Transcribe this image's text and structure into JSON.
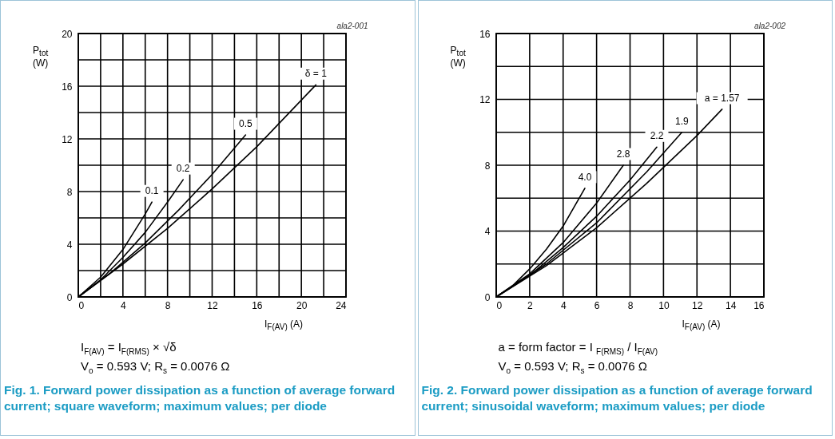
{
  "chart_data": [
    {
      "type": "line",
      "title": "Fig. 1. Forward power dissipation as a function of average forward current; square waveform; maximum values; per diode",
      "xlabel": "I$_{F(AV)}$ (A)",
      "ylabel": "P$_{tot}$ (W)",
      "annotations": [
        "ala2-001",
        "I$_{F(AV)}$ = I$_{F(RMS)}$ × √δ",
        "V$_{o}$ = 0.593 V; R$_{s}$ = 0.0076 Ω"
      ],
      "xlim": [
        0,
        24
      ],
      "ylim": [
        0,
        20
      ],
      "xticks": [
        0,
        {
          "value": 2,
          "label": null
        },
        4,
        {
          "value": 6,
          "label": null
        },
        8,
        {
          "value": 10,
          "label": null
        },
        12,
        {
          "value": 14,
          "label": null
        },
        16,
        {
          "value": 18,
          "label": null
        },
        20,
        {
          "value": 22,
          "label": null
        },
        24
      ],
      "yticks": [
        0,
        {
          "value": 2,
          "label": null
        },
        4,
        {
          "value": 6,
          "label": null
        },
        8,
        {
          "value": 10,
          "label": null
        },
        12,
        {
          "value": 14,
          "label": null
        },
        16,
        {
          "value": 18,
          "label": null
        },
        20
      ],
      "grid": true,
      "legend": false,
      "marker": "none",
      "line_style": "solid",
      "series": [
        {
          "name": "0.1",
          "color": "#000000",
          "x": [
            0,
            2,
            4,
            6,
            6.6
          ],
          "values": [
            0,
            1.5,
            3.6,
            6.3,
            7.2
          ]
        },
        {
          "name": "0.2",
          "color": "#000000",
          "x": [
            0,
            2,
            4,
            6,
            8,
            9.4
          ],
          "values": [
            0,
            1.3,
            3.0,
            4.9,
            7.2,
            8.9
          ]
        },
        {
          "name": "0.5",
          "color": "#000000",
          "x": [
            0,
            3,
            6,
            9,
            12,
            15
          ],
          "values": [
            0,
            1.9,
            4.1,
            6.6,
            9.3,
            12.3
          ]
        },
        {
          "name": "δ = 1",
          "color": "#000000",
          "x": [
            0,
            4,
            8,
            12,
            16,
            21.3
          ],
          "values": [
            0,
            2.5,
            5.2,
            8.2,
            11.4,
            16.1
          ]
        }
      ]
    },
    {
      "type": "line",
      "title": "Fig. 2. Forward power dissipation as a function of average forward current; sinusoidal waveform; maximum values; per diode",
      "xlabel": "I$_{F(AV)}$ (A)",
      "ylabel": "P$_{tot}$ (W)",
      "annotations": [
        "ala2-002",
        "a = form factor = I $_{F(RMS)}$ / I$_{F(AV)}$",
        "V$_{o}$ = 0.593 V; R$_{s}$ = 0.0076 Ω"
      ],
      "xlim": [
        0,
        16
      ],
      "ylim": [
        0,
        16
      ],
      "xticks": [
        0,
        2,
        4,
        6,
        8,
        10,
        12,
        14,
        16
      ],
      "yticks": [
        0,
        {
          "value": 2,
          "label": null
        },
        4,
        {
          "value": 6,
          "label": null
        },
        8,
        {
          "value": 10,
          "label": null
        },
        12,
        {
          "value": 14,
          "label": null
        },
        16
      ],
      "grid": true,
      "legend": false,
      "marker": "none",
      "line_style": "solid",
      "series": [
        {
          "name": "4.0",
          "color": "#000000",
          "x": [
            0,
            1,
            2,
            3,
            4,
            5.3
          ],
          "values": [
            0,
            0.7,
            1.7,
            2.9,
            4.3,
            6.6
          ]
        },
        {
          "name": "2.8",
          "color": "#000000",
          "x": [
            0,
            2,
            4,
            6,
            7.6
          ],
          "values": [
            0,
            1.4,
            3.3,
            5.7,
            8.0
          ]
        },
        {
          "name": "2.2",
          "color": "#000000",
          "x": [
            0,
            2,
            4,
            6,
            8,
            9.6
          ],
          "values": [
            0,
            1.3,
            3.0,
            4.9,
            7.1,
            9.1
          ]
        },
        {
          "name": "1.9",
          "color": "#000000",
          "x": [
            0,
            3,
            6,
            9,
            11.1
          ],
          "values": [
            0,
            2.0,
            4.5,
            7.6,
            10.0
          ]
        },
        {
          "name": "a = 1.57",
          "color": "#000000",
          "x": [
            0,
            3,
            6,
            9,
            12,
            13.5
          ],
          "values": [
            0,
            1.9,
            4.2,
            6.9,
            9.8,
            11.4
          ]
        }
      ]
    }
  ]
}
